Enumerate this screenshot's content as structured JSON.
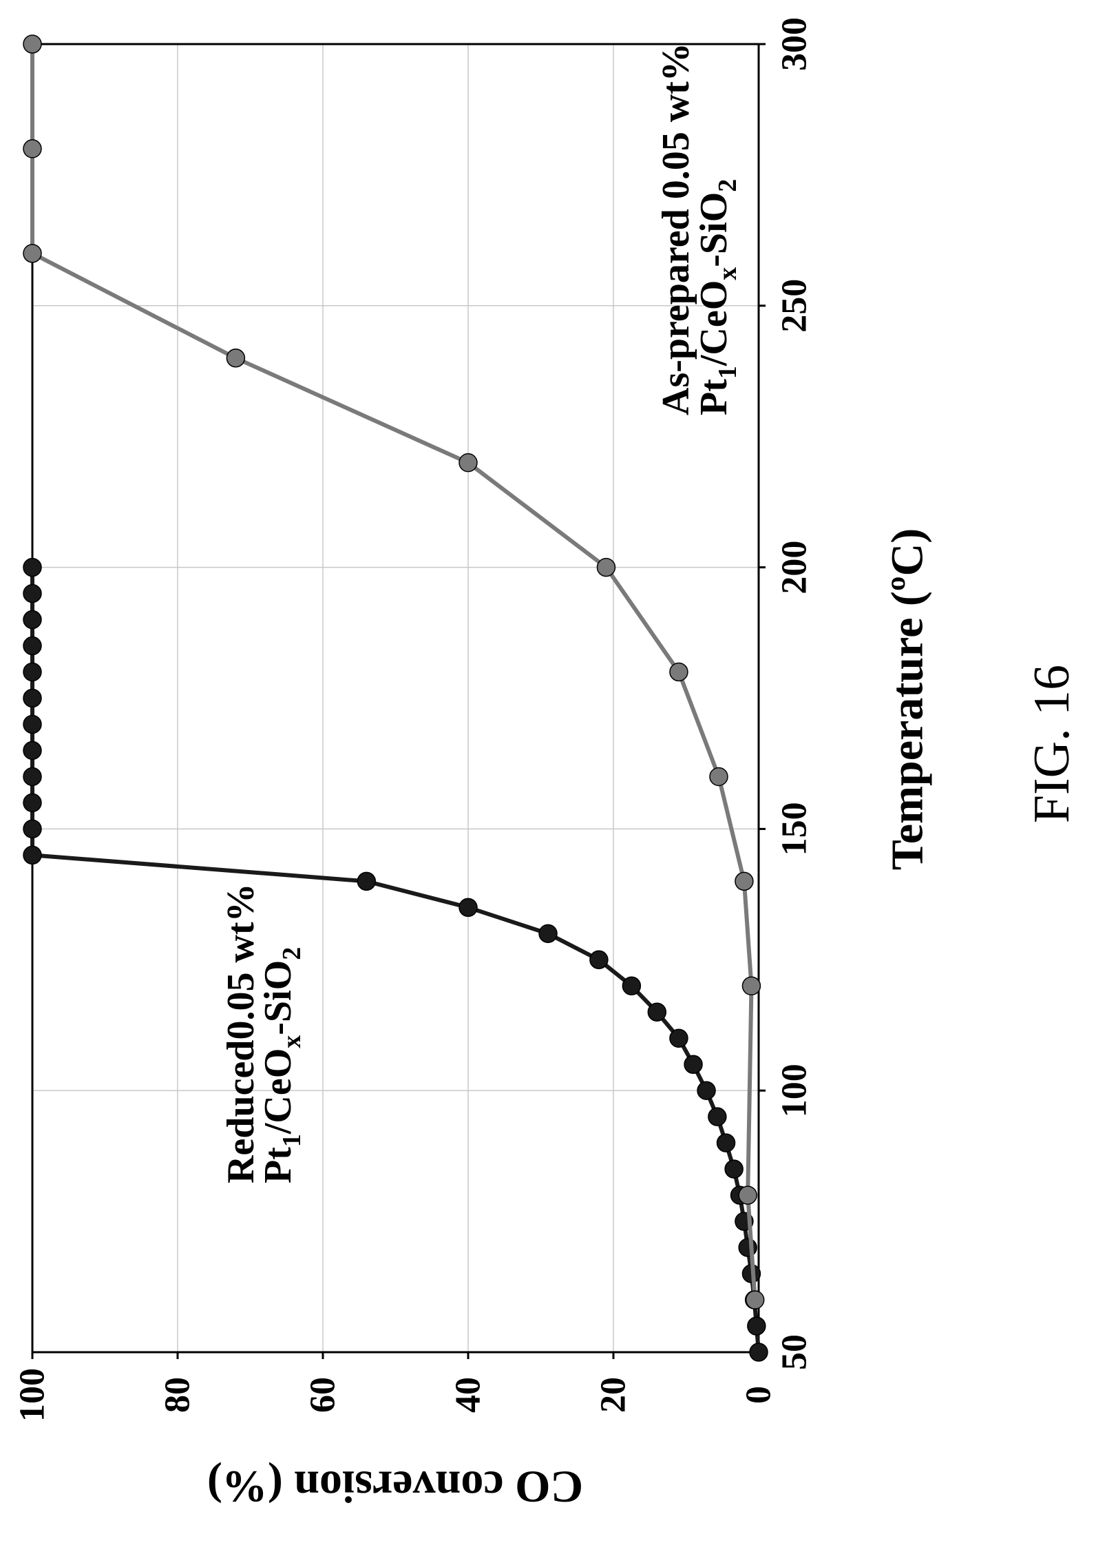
{
  "figure": {
    "caption": "FIG. 16"
  },
  "chart_data": {
    "type": "line",
    "xlabel": "Temperature (ºC)",
    "ylabel": "CO conversion (%)",
    "xlim": [
      50,
      300
    ],
    "ylim": [
      0,
      100
    ],
    "x_ticks": [
      "50",
      "100",
      "150",
      "200",
      "250",
      "300"
    ],
    "y_ticks": [
      "0",
      "20",
      "40",
      "60",
      "80",
      "100"
    ],
    "grid": true,
    "series": [
      {
        "id": "reduced",
        "color": "#1a1a1a",
        "label_line1": "Reduced0.05 wt%",
        "label_line2": {
          "parts": [
            {
              "text": "Pt",
              "style": "normal"
            },
            {
              "text": "1",
              "style": "sub"
            },
            {
              "text": "/CeO",
              "style": "normal"
            },
            {
              "text": "x",
              "style": "sub"
            },
            {
              "text": "-SiO",
              "style": "normal"
            },
            {
              "text": "2",
              "style": "sub"
            }
          ]
        },
        "x": [
          50,
          55,
          60,
          65,
          70,
          75,
          80,
          85,
          90,
          95,
          100,
          105,
          110,
          115,
          120,
          125,
          130,
          135,
          140,
          145,
          150,
          155,
          160,
          165,
          170,
          175,
          180,
          185,
          190,
          195,
          200
        ],
        "y": [
          0,
          0.3,
          0.6,
          1,
          1.5,
          2,
          2.6,
          3.4,
          4.5,
          5.7,
          7.2,
          9,
          11,
          14,
          17.5,
          22,
          29,
          40,
          54,
          100,
          100,
          100,
          100,
          100,
          100,
          100,
          100,
          100,
          100,
          100,
          100
        ]
      },
      {
        "id": "as-prepared",
        "color": "#7a7a7a",
        "label_line1": "As-prepared 0.05 wt%",
        "label_line2": {
          "parts": [
            {
              "text": "Pt",
              "style": "normal"
            },
            {
              "text": "1",
              "style": "sub"
            },
            {
              "text": "/CeO",
              "style": "normal"
            },
            {
              "text": "x",
              "style": "sub"
            },
            {
              "text": "-SiO",
              "style": "normal"
            },
            {
              "text": "2",
              "style": "sub"
            }
          ]
        },
        "x": [
          60,
          80,
          120,
          140,
          160,
          180,
          200,
          220,
          240,
          260,
          280,
          300
        ],
        "y": [
          0.5,
          1.5,
          1,
          2,
          5.5,
          11,
          21,
          40,
          72,
          100,
          100,
          100
        ]
      }
    ]
  }
}
